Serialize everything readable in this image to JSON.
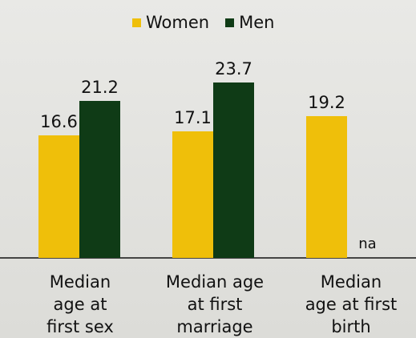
{
  "chart_data": {
    "type": "bar",
    "categories": [
      "Median age at first sex",
      "Median age at first marriage",
      "Median age at first birth"
    ],
    "series": [
      {
        "name": "Women",
        "color": "#efbf0a",
        "values": [
          16.6,
          17.1,
          19.2
        ]
      },
      {
        "name": "Men",
        "color": "#0f3b16",
        "values": [
          21.2,
          23.7,
          null
        ],
        "value_labels": [
          "21.2",
          "23.7",
          "na"
        ]
      }
    ]
  }
}
